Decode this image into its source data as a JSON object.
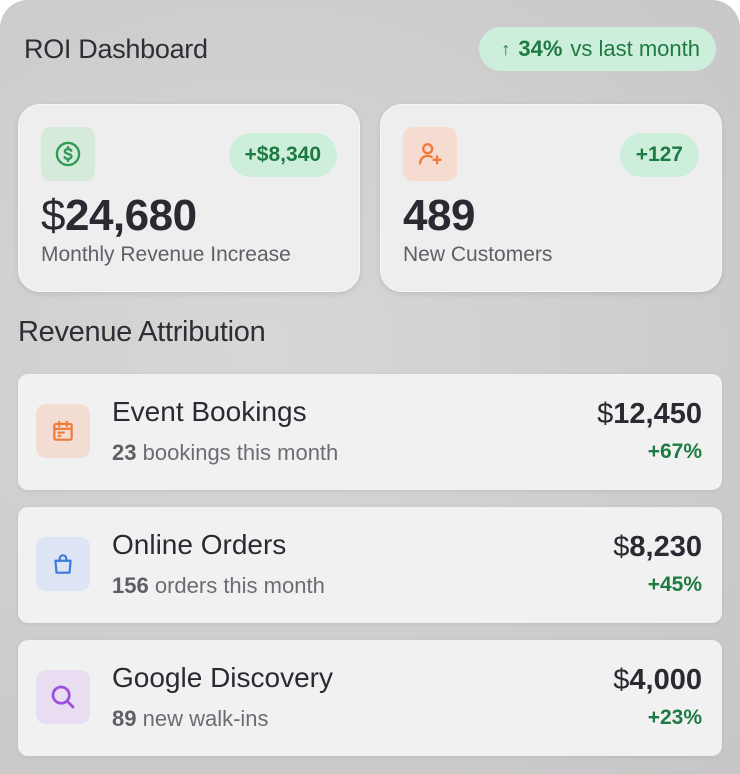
{
  "header": {
    "title": "ROI Dashboard",
    "trend_percent": "34%",
    "trend_suffix": "vs last month",
    "trend_icon": "arrow-up-icon"
  },
  "stats": [
    {
      "icon": "dollar-circle-icon",
      "delta": "+$8,340",
      "currency": "$",
      "value": "24,680",
      "label": "Monthly Revenue Increase"
    },
    {
      "icon": "user-plus-icon",
      "delta": "+127",
      "currency": "",
      "value": "489",
      "label": "New Customers"
    }
  ],
  "attribution": {
    "title": "Revenue Attribution",
    "rows": [
      {
        "icon": "calendar-icon",
        "name": "Event Bookings",
        "count": "23",
        "sub": "bookings this month",
        "currency": "$",
        "amount": "12,450",
        "change": "+67%"
      },
      {
        "icon": "shopping-bag-icon",
        "name": "Online Orders",
        "count": "156",
        "sub": "orders this month",
        "currency": "$",
        "amount": "8,230",
        "change": "+45%"
      },
      {
        "icon": "search-icon",
        "name": "Google Discovery",
        "count": "89",
        "sub": "new walk-ins",
        "currency": "$",
        "amount": "4,000",
        "change": "+23%"
      }
    ]
  },
  "colors": {
    "positive": "#1e7a43",
    "positive_bg": "#cdeedb",
    "accent_orange": "#ef7a3a",
    "accent_blue": "#3b7be0",
    "accent_purple": "#9b4fdc",
    "accent_green": "#2f9a55"
  }
}
